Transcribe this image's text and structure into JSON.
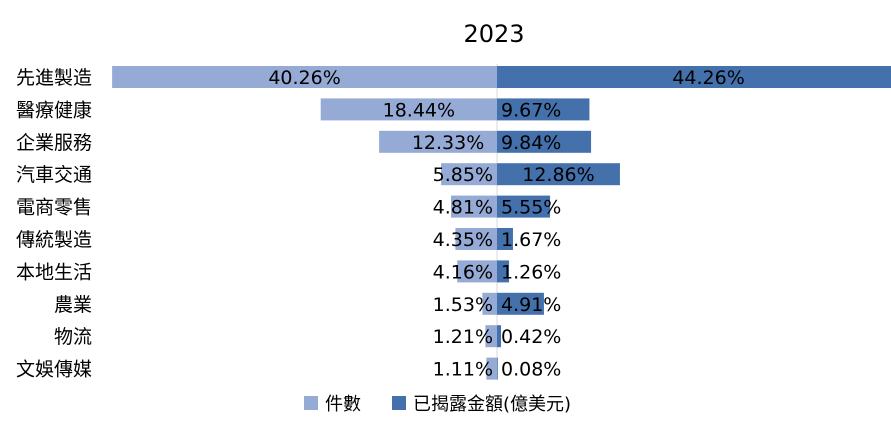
{
  "chart_data": {
    "type": "bar",
    "orientation": "horizontal-diverging",
    "title": "2023",
    "categories": [
      "先進製造",
      "醫療健康",
      "企業服務",
      "汽車交通",
      "電商零售",
      "傳統製造",
      "本地生活",
      "農業",
      "物流",
      "文娛傳媒"
    ],
    "series": [
      {
        "name": "件數",
        "side": "left",
        "color": "#95aad5",
        "values": [
          40.26,
          18.44,
          12.33,
          5.85,
          4.81,
          4.35,
          4.16,
          1.53,
          1.21,
          1.11
        ],
        "labels": [
          "40.26%",
          "18.44%",
          "12.33%",
          "5.85%",
          "4.81%",
          "4.35%",
          "4.16%",
          "1.53%",
          "1.21%",
          "1.11%"
        ]
      },
      {
        "name": "已揭露金額(億美元)",
        "side": "right",
        "color": "#4471ac",
        "values": [
          44.26,
          9.67,
          9.84,
          12.86,
          5.55,
          1.67,
          1.26,
          4.91,
          0.42,
          0.08
        ],
        "labels": [
          "44.26%",
          "9.67%",
          "9.84%",
          "12.86%",
          "5.55%",
          "1.67%",
          "1.26%",
          "4.91%",
          "0.42%",
          "0.08%"
        ]
      }
    ],
    "legend_position": "bottom",
    "grid": false
  }
}
